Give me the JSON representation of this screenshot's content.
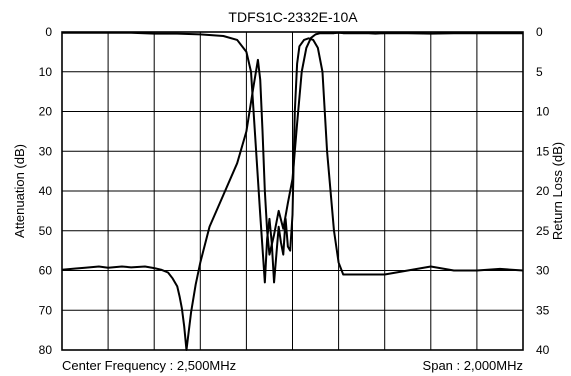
{
  "chart_data": {
    "type": "line",
    "title": "TDFS1C-2332E-10A",
    "ylabel_left": "Attenuation (dB)",
    "ylabel_right": "Return Loss (dB)",
    "footer_left": "Center Frequency : 2,500MHz",
    "footer_right": "Span : 2,000MHz",
    "x_range": [
      1500,
      3500
    ],
    "x_divisions": 10,
    "y_left_range": [
      0,
      80
    ],
    "y_left_ticks": [
      "0",
      "10",
      "20",
      "30",
      "40",
      "50",
      "60",
      "70",
      "80"
    ],
    "y_right_range": [
      0,
      40
    ],
    "y_right_ticks": [
      "0",
      "5",
      "10",
      "15",
      "20",
      "25",
      "30",
      "35",
      "40"
    ],
    "y_inverted": true,
    "grid": true,
    "line_color": "#000000",
    "series": [
      {
        "axis": "left",
        "x": [
          1500,
          1560,
          1600,
          1660,
          1700,
          1760,
          1800,
          1860,
          1900,
          1930,
          1960,
          1980,
          2000,
          2010,
          2020,
          2030,
          2040,
          2060,
          2080,
          2100,
          2140,
          2200,
          2260,
          2300,
          2330,
          2350,
          2360,
          2370,
          2380,
          2390,
          2400,
          2420,
          2440,
          2460,
          2480,
          2500,
          2520,
          2540,
          2560,
          2580,
          2600,
          2620,
          2650,
          2680,
          2700,
          2720,
          2740,
          2760,
          2780,
          2800,
          2830,
          2860,
          2900,
          2950,
          3000,
          3100,
          3200,
          3300,
          3400,
          3500
        ],
        "values": [
          59.8,
          59.5,
          59.3,
          59.0,
          59.3,
          59.0,
          59.2,
          59.0,
          59.4,
          59.8,
          60.5,
          62.0,
          64.0,
          66.5,
          69.5,
          74.0,
          80.0,
          70.5,
          63.5,
          58.0,
          49.0,
          41.0,
          33.0,
          25.0,
          14.0,
          7.0,
          12.0,
          25.0,
          40.0,
          50.0,
          56.0,
          51.0,
          45.0,
          49.5,
          43.0,
          37.0,
          23.0,
          10.0,
          4.0,
          1.5,
          0.6,
          0.3,
          0.3,
          0.3,
          0.2,
          0.3,
          0.3,
          0.3,
          0.3,
          0.3,
          0.3,
          0.4,
          0.3,
          0.3,
          0.3,
          0.4,
          0.3,
          0.3,
          0.3,
          0.3
        ]
      },
      {
        "axis": "right",
        "x": [
          1500,
          1600,
          1700,
          1800,
          1900,
          2000,
          2100,
          2200,
          2260,
          2300,
          2320,
          2340,
          2360,
          2380,
          2390,
          2400,
          2410,
          2420,
          2440,
          2450,
          2460,
          2470,
          2480,
          2490,
          2500,
          2510,
          2520,
          2530,
          2550,
          2570,
          2590,
          2610,
          2630,
          2650,
          2680,
          2700,
          2720,
          2760,
          2800,
          2900,
          3000,
          3100,
          3200,
          3300,
          3400,
          3500
        ],
        "values": [
          0.1,
          0.1,
          0.1,
          0.1,
          0.2,
          0.2,
          0.3,
          0.5,
          1.0,
          2.5,
          5.0,
          14.0,
          23.0,
          31.5,
          26.0,
          23.5,
          26.5,
          31.5,
          24.5,
          26.5,
          28.0,
          23.5,
          27.0,
          27.5,
          23.0,
          10.0,
          4.0,
          1.8,
          1.0,
          0.8,
          1.0,
          2.0,
          5.0,
          15.0,
          25.0,
          29.0,
          30.5,
          30.5,
          30.5,
          30.5,
          30.0,
          29.5,
          30.0,
          30.0,
          29.8,
          30.0
        ]
      }
    ]
  }
}
